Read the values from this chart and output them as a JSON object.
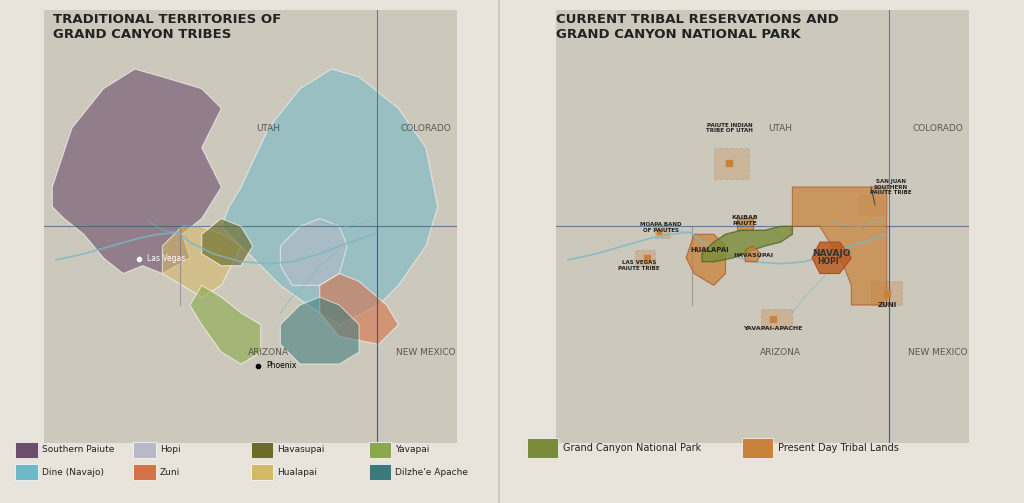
{
  "bg_color": "#e8e4dc",
  "map_bg": "#ddd8cc",
  "border_color": "#555555",
  "title1": "TRADITIONAL TERRITORIES OF\nGRAND CANYON TRIBES",
  "title2": "CURRENT TRIBAL RESERVATIONS AND\nGRAND CANYON NATIONAL PARK",
  "state_labels": [
    "UTAH",
    "COLORADO",
    "ARIZONA",
    "NEW MEXICO"
  ],
  "cities_left": [
    [
      "Las Vegas",
      -115.1,
      36.17
    ],
    [
      "Phoenix",
      -112.07,
      33.45
    ]
  ],
  "tribe_colors": {
    "Southern Paiute": "#6b4e6b",
    "Dine_Navajo": "#6fb8c8",
    "Hopi": "#b8b8c8",
    "Zuni": "#d4724a",
    "Havasupai": "#6b6b2a",
    "Hualapai": "#d4b86a",
    "Yavapai": "#8aaa4a",
    "Dilzhe_Apache": "#3a7a7a"
  },
  "legend1": [
    [
      "Southern Paiute",
      "#6b4e6b"
    ],
    [
      "Dine (Navajo)",
      "#6fb8c8"
    ],
    [
      "Hopi",
      "#b8b8c8"
    ],
    [
      "Zuni",
      "#d4724a"
    ],
    [
      "Havasupai",
      "#6b6b2a"
    ],
    [
      "Hualapai",
      "#d4b86a"
    ],
    [
      "Yavapai",
      "#8aaa4a"
    ],
    [
      "Dilzhe'e Apache",
      "#3a7a7a"
    ]
  ],
  "legend2": [
    [
      "Grand Canyon National Park",
      "#7a8c3a"
    ],
    [
      "Present Day Tribal Lands",
      "#c8823a"
    ]
  ],
  "river_color": "#7ab8c8",
  "state_line_color": "#3a5a7a",
  "xlim": [
    -117.5,
    -107.0
  ],
  "ylim": [
    31.5,
    42.5
  ],
  "map_split_lon": -114.0,
  "utah_lat": 37.0,
  "colorado_lat": 37.0,
  "colorado_lon": -109.05,
  "arizona_lat": 34.5,
  "arizona_lon": -111.8,
  "newmexico_lat": 34.5,
  "newmexico_lon": -107.8
}
